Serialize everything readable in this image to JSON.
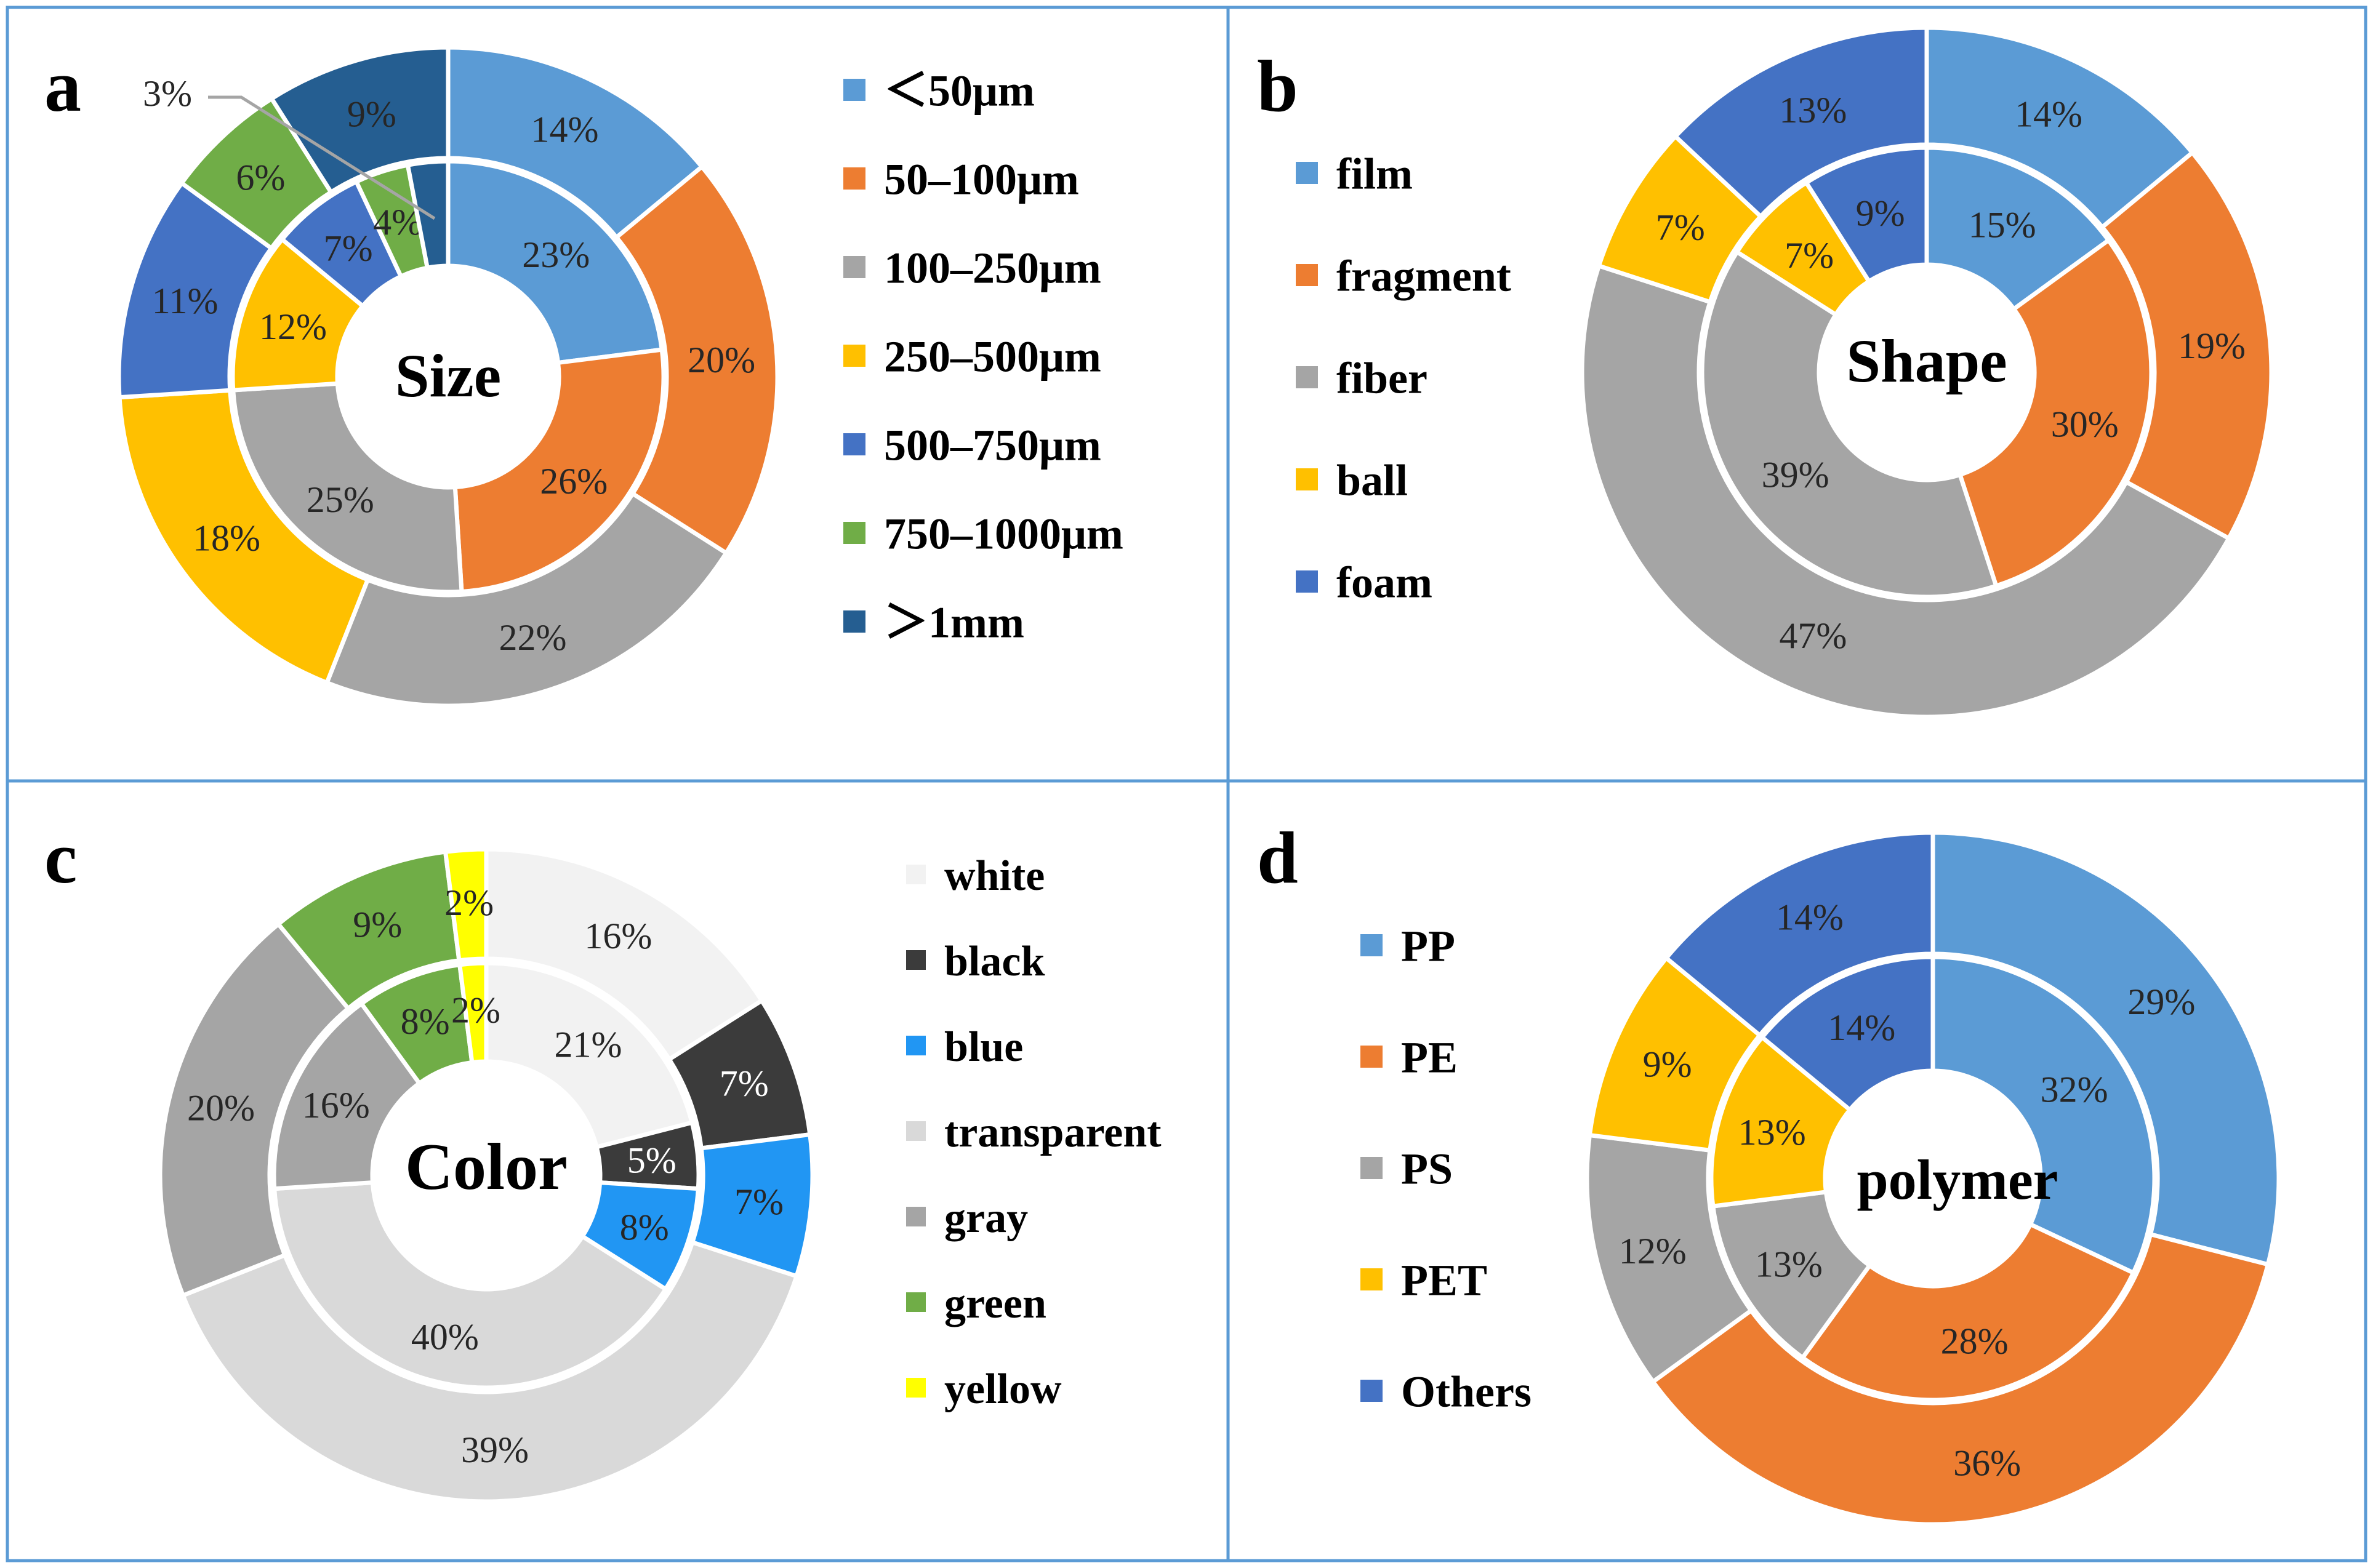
{
  "chart_data": [
    {
      "type": "doughnut",
      "panel_letter": "a",
      "center_label": "Size",
      "categories": [
        "<50μm",
        "50–100μm",
        "100–250μm",
        "250–500μm",
        "500–750μm",
        "750–1000μm",
        ">1mm"
      ],
      "legend_labels": [
        "＜50μm",
        "50–100μm",
        "100–250μm",
        "250–500μm",
        "500–750μm",
        "750–1000μm",
        "＞1mm"
      ],
      "colors": [
        "#5B9BD5",
        "#ED7D31",
        "#A5A5A5",
        "#FFC000",
        "#4472C4",
        "#70AD47",
        "#255E91"
      ],
      "series": [
        {
          "name": "inner",
          "values": [
            23,
            26,
            25,
            12,
            7,
            4,
            3
          ],
          "labels": [
            "23%",
            "26%",
            "25%",
            "12%",
            "7%",
            "4%",
            "3%"
          ]
        },
        {
          "name": "outer",
          "values": [
            14,
            20,
            22,
            18,
            11,
            6,
            9
          ],
          "labels": [
            "14%",
            "20%",
            "22%",
            "18%",
            "11%",
            "6%",
            "9%"
          ]
        }
      ]
    },
    {
      "type": "doughnut",
      "panel_letter": "b",
      "center_label": "Shape",
      "categories": [
        "film",
        "fragment",
        "fiber",
        "ball",
        "foam"
      ],
      "legend_labels": [
        "film",
        "fragment",
        "fiber",
        "ball",
        "foam"
      ],
      "colors": [
        "#5B9BD5",
        "#ED7D31",
        "#A5A5A5",
        "#FFC000",
        "#4472C4"
      ],
      "series": [
        {
          "name": "inner",
          "values": [
            15,
            30,
            39,
            7,
            9
          ],
          "labels": [
            "15%",
            "30%",
            "39%",
            "7%",
            "9%"
          ]
        },
        {
          "name": "outer",
          "values": [
            14,
            19,
            47,
            7,
            13
          ],
          "labels": [
            "14%",
            "19%",
            "47%",
            "7%",
            "13%"
          ]
        }
      ]
    },
    {
      "type": "doughnut",
      "panel_letter": "c",
      "center_label": "Color",
      "categories": [
        "white",
        "black",
        "blue",
        "transparent",
        "gray",
        "green",
        "yellow"
      ],
      "legend_labels": [
        "white",
        "black",
        "blue",
        "transparent",
        "gray",
        "green",
        "yellow"
      ],
      "colors": [
        "#F2F2F2",
        "#3B3B3B",
        "#2196F3",
        "#D9D9D9",
        "#A5A5A5",
        "#70AD47",
        "#FFFF00"
      ],
      "series": [
        {
          "name": "inner",
          "values": [
            21,
            5,
            8,
            40,
            16,
            8,
            2
          ],
          "labels": [
            "21%",
            "5%",
            "8%",
            "40%",
            "16%",
            "8%",
            "2%"
          ]
        },
        {
          "name": "outer",
          "values": [
            16,
            7,
            7,
            39,
            20,
            9,
            2
          ],
          "labels": [
            "16%",
            "7%",
            "7%",
            "39%",
            "20%",
            "9%",
            "2%"
          ]
        }
      ]
    },
    {
      "type": "doughnut",
      "panel_letter": "d",
      "center_label": "polymer",
      "categories": [
        "PP",
        "PE",
        "PS",
        "PET",
        "Others"
      ],
      "legend_labels": [
        "PP",
        "PE",
        "PS",
        "PET",
        "Others"
      ],
      "colors": [
        "#5B9BD5",
        "#ED7D31",
        "#A5A5A5",
        "#FFC000",
        "#4472C4"
      ],
      "series": [
        {
          "name": "inner",
          "values": [
            32,
            28,
            13,
            13,
            14
          ],
          "labels": [
            "32%",
            "28%",
            "13%",
            "13%",
            "14%"
          ]
        },
        {
          "name": "outer",
          "values": [
            29,
            36,
            12,
            9,
            14
          ],
          "labels": [
            "29%",
            "36%",
            "12%",
            "9%",
            "14%"
          ]
        }
      ]
    }
  ]
}
